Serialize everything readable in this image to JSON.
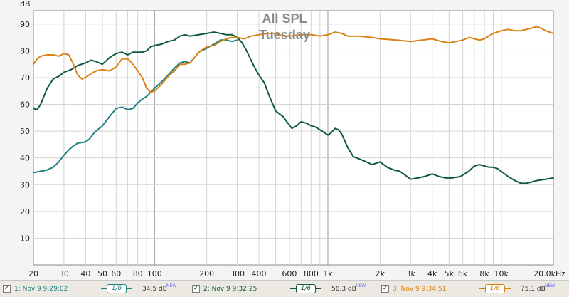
{
  "chart_data": {
    "type": "line",
    "title": "All SPL",
    "subtitle": "Tuesday",
    "ylabel": "dB",
    "ylim": [
      0,
      95
    ],
    "xlim": [
      20,
      20000
    ],
    "xscale": "log",
    "y_ticks": [
      10,
      20,
      30,
      40,
      50,
      60,
      70,
      80,
      90
    ],
    "x_ticks": [
      {
        "value": 20,
        "label": "20"
      },
      {
        "value": 30,
        "label": "30"
      },
      {
        "value": 40,
        "label": "40"
      },
      {
        "value": 50,
        "label": "50"
      },
      {
        "value": 60,
        "label": "60"
      },
      {
        "value": 80,
        "label": "80"
      },
      {
        "value": 100,
        "label": "100"
      },
      {
        "value": 200,
        "label": "200"
      },
      {
        "value": 300,
        "label": "300"
      },
      {
        "value": 400,
        "label": "400"
      },
      {
        "value": 600,
        "label": "600"
      },
      {
        "value": 800,
        "label": "800"
      },
      {
        "value": 1000,
        "label": "1k"
      },
      {
        "value": 2000,
        "label": "2k"
      },
      {
        "value": 3000,
        "label": "3k"
      },
      {
        "value": 4000,
        "label": "4k"
      },
      {
        "value": 5000,
        "label": "5k"
      },
      {
        "value": 6000,
        "label": "6k"
      },
      {
        "value": 8000,
        "label": "8k"
      },
      {
        "value": 10000,
        "label": "10k"
      },
      {
        "value": 20000,
        "label": "20.0kHz"
      }
    ],
    "grid": true,
    "series": [
      {
        "name": "1: Nov 9 9:29:02",
        "color": "#1f7f82",
        "points": [
          [
            20,
            34.5
          ],
          [
            22,
            35
          ],
          [
            24,
            35.5
          ],
          [
            26,
            36.5
          ],
          [
            28,
            38.5
          ],
          [
            30,
            41
          ],
          [
            32,
            43
          ],
          [
            34,
            44.5
          ],
          [
            36,
            45.5
          ],
          [
            40,
            46
          ],
          [
            42,
            47
          ],
          [
            45,
            49.5
          ],
          [
            50,
            52
          ],
          [
            55,
            55.5
          ],
          [
            60,
            58.5
          ],
          [
            65,
            59
          ],
          [
            70,
            58
          ],
          [
            75,
            58.5
          ],
          [
            80,
            60.5
          ],
          [
            85,
            62
          ],
          [
            90,
            63
          ],
          [
            95,
            64.5
          ],
          [
            100,
            66
          ],
          [
            110,
            68.5
          ],
          [
            120,
            71
          ],
          [
            130,
            73.5
          ],
          [
            140,
            75.5
          ],
          [
            150,
            76
          ],
          [
            160,
            75.5
          ],
          [
            170,
            77.5
          ],
          [
            180,
            79.5
          ],
          [
            200,
            81
          ],
          [
            220,
            82.5
          ],
          [
            240,
            84
          ],
          [
            260,
            84
          ],
          [
            280,
            83.5
          ],
          [
            300,
            84
          ]
        ]
      },
      {
        "name": "2: Nov 9 9:32:25",
        "color": "#0f5a3c",
        "points": [
          [
            20,
            58.5
          ],
          [
            21,
            58
          ],
          [
            22,
            60
          ],
          [
            24,
            66
          ],
          [
            26,
            69.5
          ],
          [
            28,
            70.5
          ],
          [
            30,
            72
          ],
          [
            33,
            73
          ],
          [
            36,
            74.5
          ],
          [
            40,
            75.5
          ],
          [
            43,
            76.5
          ],
          [
            46,
            76
          ],
          [
            50,
            75
          ],
          [
            55,
            77.5
          ],
          [
            60,
            79
          ],
          [
            65,
            79.5
          ],
          [
            70,
            78.5
          ],
          [
            75,
            79.5
          ],
          [
            80,
            79.5
          ],
          [
            85,
            79.5
          ],
          [
            90,
            80
          ],
          [
            95,
            81.5
          ],
          [
            100,
            82
          ],
          [
            110,
            82.5
          ],
          [
            120,
            83.5
          ],
          [
            130,
            84
          ],
          [
            140,
            85.5
          ],
          [
            150,
            86
          ],
          [
            160,
            85.5
          ],
          [
            180,
            86
          ],
          [
            200,
            86.5
          ],
          [
            220,
            87
          ],
          [
            240,
            86.5
          ],
          [
            260,
            86
          ],
          [
            280,
            86
          ],
          [
            300,
            85
          ],
          [
            320,
            83
          ],
          [
            340,
            80
          ],
          [
            360,
            76.5
          ],
          [
            380,
            73.5
          ],
          [
            400,
            71
          ],
          [
            430,
            68
          ],
          [
            460,
            63
          ],
          [
            500,
            57.5
          ],
          [
            550,
            55.5
          ],
          [
            580,
            53.5
          ],
          [
            620,
            51
          ],
          [
            660,
            52
          ],
          [
            700,
            53.5
          ],
          [
            750,
            53
          ],
          [
            800,
            52
          ],
          [
            850,
            51.5
          ],
          [
            900,
            50.5
          ],
          [
            950,
            49.5
          ],
          [
            1000,
            48.5
          ],
          [
            1050,
            49.5
          ],
          [
            1100,
            51
          ],
          [
            1150,
            50.5
          ],
          [
            1200,
            49
          ],
          [
            1300,
            44
          ],
          [
            1400,
            40.5
          ],
          [
            1600,
            39
          ],
          [
            1800,
            37.5
          ],
          [
            2000,
            38.5
          ],
          [
            2200,
            36.5
          ],
          [
            2400,
            35.5
          ],
          [
            2600,
            35
          ],
          [
            2800,
            33.5
          ],
          [
            3000,
            32
          ],
          [
            3300,
            32.5
          ],
          [
            3600,
            33
          ],
          [
            4000,
            34
          ],
          [
            4400,
            33
          ],
          [
            4800,
            32.5
          ],
          [
            5200,
            32.5
          ],
          [
            5800,
            33
          ],
          [
            6500,
            35
          ],
          [
            7000,
            37
          ],
          [
            7500,
            37.5
          ],
          [
            8000,
            37
          ],
          [
            8500,
            36.5
          ],
          [
            9000,
            36.5
          ],
          [
            9500,
            36
          ],
          [
            10000,
            35
          ],
          [
            11000,
            33
          ],
          [
            12000,
            31.5
          ],
          [
            13000,
            30.5
          ],
          [
            14000,
            30.5
          ],
          [
            16000,
            31.5
          ],
          [
            18000,
            32
          ],
          [
            20000,
            32.5
          ]
        ]
      },
      {
        "name": "3: Nov 9 9:34:51",
        "color": "#d98215",
        "points": [
          [
            20,
            75
          ],
          [
            21,
            77
          ],
          [
            22,
            78
          ],
          [
            24,
            78.5
          ],
          [
            26,
            78.5
          ],
          [
            28,
            78
          ],
          [
            30,
            79
          ],
          [
            32,
            78.5
          ],
          [
            34,
            75
          ],
          [
            36,
            71
          ],
          [
            38,
            69.5
          ],
          [
            40,
            70
          ],
          [
            43,
            71.5
          ],
          [
            46,
            72.5
          ],
          [
            50,
            73
          ],
          [
            55,
            72.5
          ],
          [
            60,
            74
          ],
          [
            65,
            77
          ],
          [
            70,
            77
          ],
          [
            75,
            75
          ],
          [
            80,
            72.5
          ],
          [
            85,
            70
          ],
          [
            90,
            66
          ],
          [
            95,
            64.5
          ],
          [
            100,
            65
          ],
          [
            110,
            67.5
          ],
          [
            120,
            70.5
          ],
          [
            130,
            72.5
          ],
          [
            140,
            75
          ],
          [
            150,
            75
          ],
          [
            160,
            75.5
          ],
          [
            170,
            77.5
          ],
          [
            180,
            79.5
          ],
          [
            200,
            81.5
          ],
          [
            220,
            82
          ],
          [
            240,
            83.5
          ],
          [
            260,
            84.5
          ],
          [
            280,
            85
          ],
          [
            300,
            85
          ],
          [
            330,
            84.5
          ],
          [
            360,
            85.5
          ],
          [
            400,
            86
          ],
          [
            450,
            86.5
          ],
          [
            500,
            86.5
          ],
          [
            550,
            85.5
          ],
          [
            600,
            85.5
          ],
          [
            700,
            86
          ],
          [
            800,
            86
          ],
          [
            900,
            85.5
          ],
          [
            1000,
            86
          ],
          [
            1100,
            87
          ],
          [
            1200,
            86.5
          ],
          [
            1300,
            85.5
          ],
          [
            1500,
            85.5
          ],
          [
            1800,
            85
          ],
          [
            2000,
            84.5
          ],
          [
            2500,
            84
          ],
          [
            3000,
            83.5
          ],
          [
            3500,
            84
          ],
          [
            4000,
            84.5
          ],
          [
            4500,
            83.5
          ],
          [
            5000,
            83
          ],
          [
            5500,
            83.5
          ],
          [
            6000,
            84
          ],
          [
            6500,
            85
          ],
          [
            7000,
            84.5
          ],
          [
            7500,
            84
          ],
          [
            8000,
            84.5
          ],
          [
            9000,
            86.5
          ],
          [
            10000,
            87.5
          ],
          [
            11000,
            88
          ],
          [
            12000,
            87.5
          ],
          [
            13000,
            87.5
          ],
          [
            14000,
            88
          ],
          [
            15000,
            88.5
          ],
          [
            16000,
            89
          ],
          [
            17000,
            88.5
          ],
          [
            18000,
            87.5
          ],
          [
            20000,
            86.5
          ]
        ]
      }
    ]
  },
  "legend": [
    {
      "label": "1: Nov 9 9:29:02",
      "smoothing": "1/6",
      "level": "34.5 dB",
      "badge": "NEW"
    },
    {
      "label": "2: Nov 9 9:32:25",
      "smoothing": "1/6",
      "level": "58.3 dB",
      "badge": "NEW"
    },
    {
      "label": "3: Nov 9 9:34:51",
      "smoothing": "1/6",
      "level": "75.1 dB",
      "badge": "NEW"
    }
  ],
  "colors": {
    "plot_bg": "#ffffff",
    "grid_major": "#9a9a9a",
    "grid_minor": "#d4d4d4",
    "title": "#8a8a8a"
  }
}
